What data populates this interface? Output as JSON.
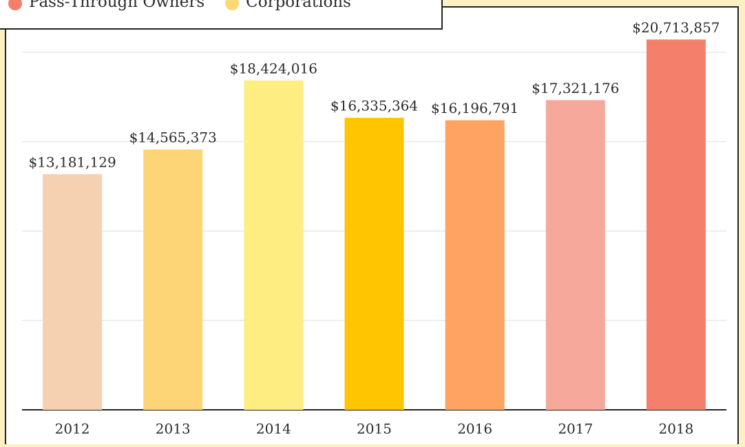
{
  "chart_data": {
    "type": "bar",
    "legend": [
      {
        "name": "Pass-Through Owners",
        "color": "#f47f6b"
      },
      {
        "name": "Corporations",
        "color": "#fdd876"
      }
    ],
    "categories": [
      "2012",
      "2013",
      "2014",
      "2015",
      "2016",
      "2017",
      "2018"
    ],
    "values": [
      13181129,
      14565373,
      18424016,
      16335364,
      16196791,
      17321176,
      20713857
    ],
    "value_labels": [
      "$13,181,129",
      "$14,565,373",
      "$18,424,016",
      "$16,335,364",
      "$16,196,791",
      "$17,321,176",
      "$20,713,857"
    ],
    "colors": [
      "#f5d1b1",
      "#fdd576",
      "#feee81",
      "#fec500",
      "#fea362",
      "#f6a99b",
      "#f47f6b"
    ],
    "ylim": [
      0,
      22000000
    ],
    "yticks": [
      0,
      5000000,
      10000000,
      15000000,
      20000000
    ],
    "grid": true
  }
}
